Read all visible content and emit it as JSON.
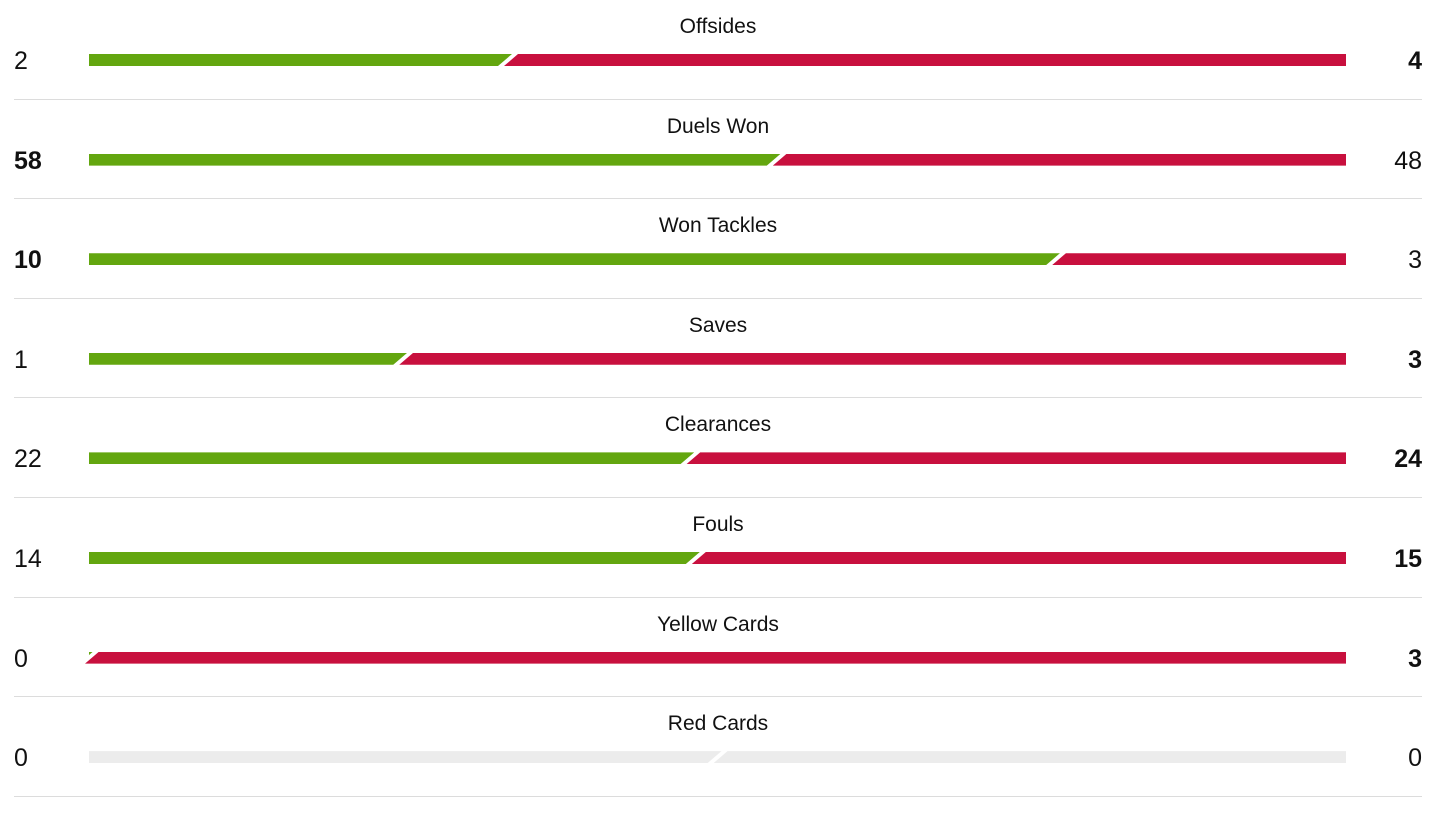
{
  "colors": {
    "home": "#63a60f",
    "away": "#c8103e",
    "empty": "#ececec"
  },
  "stats": [
    {
      "label": "Offsides",
      "home": 2,
      "away": 4
    },
    {
      "label": "Duels Won",
      "home": 58,
      "away": 48
    },
    {
      "label": "Won Tackles",
      "home": 10,
      "away": 3
    },
    {
      "label": "Saves",
      "home": 1,
      "away": 3
    },
    {
      "label": "Clearances",
      "home": 22,
      "away": 24
    },
    {
      "label": "Fouls",
      "home": 14,
      "away": 15
    },
    {
      "label": "Yellow Cards",
      "home": 0,
      "away": 3
    },
    {
      "label": "Red Cards",
      "home": 0,
      "away": 0
    }
  ]
}
